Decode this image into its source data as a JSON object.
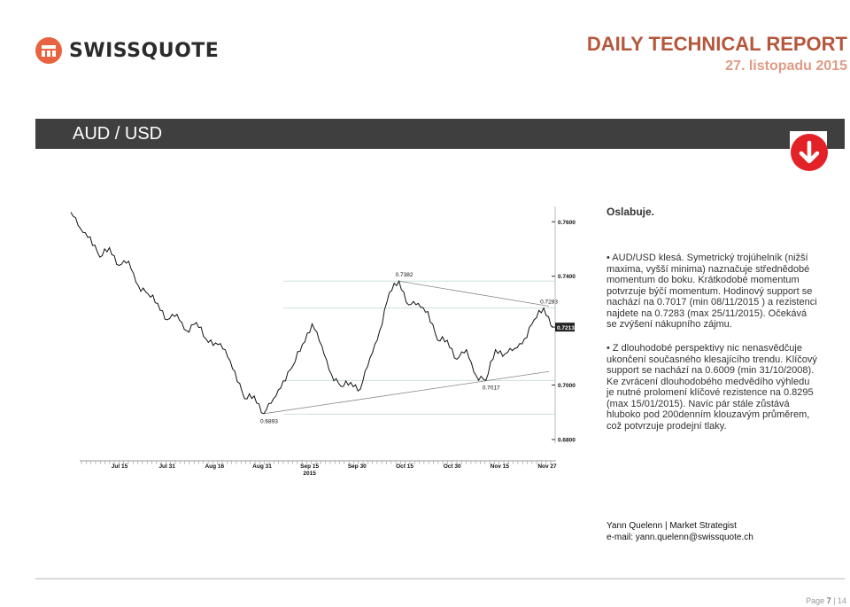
{
  "brand": {
    "name": "SWISSQUOTE",
    "logo_color": "#e8633f"
  },
  "header": {
    "title": "DAILY TECHNICAL REPORT",
    "date": "27. listopadu 2015"
  },
  "banner": {
    "pair": "AUD / USD",
    "signal_icon": "arrow-down-icon",
    "signal_color": "#e32228"
  },
  "analysis": {
    "headline": "Oslabuje.",
    "bullet1": "• AUD/USD klesá. Symetrický trojúhelník (nižší maxima, vyšší minima) naznačuje střednědobé momentum do boku. Krátkodobé momentum potvrzuje býčí momentum. Hodinový support se nachází na 0.7017 (min 08/11/2015 ) a rezistenci najdete na 0.7283 (max 25/11/2015). Očekává se zvýšení nákupního zájmu.",
    "bullet2": "• Z dlouhodobé perspektivy nic nenasvědčuje ukončení současného klesajícího trendu. Klíčový support se nachází na 0.6009 (min 31/10/2008). Ke zvrácení dlouhodobého medvědího výhledu je nutné prolomení klíčové rezistence na 0.8295 (max 15/01/2015). Navíc pár stále zůstává hluboko pod 200denním klouzavým průměrem, což potvrzuje prodejní tlaky."
  },
  "author": {
    "name_line": "Yann Quelenn | Market Strategist",
    "email_line": "e-mail: yann.quelenn@swissquote.ch"
  },
  "footer": {
    "page_label": "Page",
    "page_current": "7",
    "page_total": "14"
  },
  "chart_data": {
    "type": "line",
    "x_tick_labels": [
      "Jul 15",
      "Jul 31",
      "Aug 16",
      "Aug 31",
      "Sep 15\n2015",
      "Sep 30",
      "Oct 15",
      "Oct 30",
      "Nov 15",
      "Nov 27"
    ],
    "y_tick_labels": [
      "0.7600",
      "0.7400",
      "0.7213",
      "0.7000",
      "0.6800"
    ],
    "ylim": [
      0.68,
      0.764
    ],
    "current_price": 0.7213,
    "annotations": [
      {
        "label": "0.7382",
        "x": "Sep 25",
        "y": 0.7382
      },
      {
        "label": "0.7283",
        "x": "Nov 25",
        "y": 0.7283
      },
      {
        "label": "0.7017",
        "x": "Nov 8",
        "y": 0.7017
      },
      {
        "label": "0.6893",
        "x": "Sep 5",
        "y": 0.6893
      }
    ],
    "horizontal_levels": [
      0.7382,
      0.7283,
      0.7017,
      0.6893
    ],
    "series": [
      {
        "x": [
          "Jul 1",
          "Jul 4",
          "Jul 7",
          "Jul 10",
          "Jul 13",
          "Jul 16",
          "Jul 19",
          "Jul 22",
          "Jul 25",
          "Jul 28",
          "Jul 31",
          "Aug 3",
          "Aug 6",
          "Aug 9",
          "Aug 12",
          "Aug 15",
          "Aug 18",
          "Aug 21",
          "Aug 24",
          "Aug 27",
          "Aug 30",
          "Sep 2",
          "Sep 5",
          "Sep 8",
          "Sep 11",
          "Sep 14",
          "Sep 17",
          "Sep 20",
          "Sep 23",
          "Sep 26",
          "Sep 29",
          "Oct 2",
          "Oct 5",
          "Oct 8",
          "Oct 11",
          "Oct 14",
          "Oct 17",
          "Oct 20",
          "Oct 23",
          "Oct 26",
          "Oct 29",
          "Nov 1",
          "Nov 4",
          "Nov 7",
          "Nov 10",
          "Nov 13",
          "Nov 16",
          "Nov 19",
          "Nov 22",
          "Nov 25",
          "Nov 27"
        ],
        "y": [
          0.7635,
          0.7575,
          0.7545,
          0.747,
          0.7505,
          0.744,
          0.7455,
          0.7365,
          0.7335,
          0.73,
          0.724,
          0.726,
          0.72,
          0.723,
          0.717,
          0.7155,
          0.713,
          0.705,
          0.695,
          0.696,
          0.6895,
          0.695,
          0.7015,
          0.707,
          0.715,
          0.7225,
          0.7145,
          0.704,
          0.6995,
          0.701,
          0.6985,
          0.71,
          0.72,
          0.734,
          0.7382,
          0.7295,
          0.73,
          0.727,
          0.7165,
          0.7165,
          0.7095,
          0.713,
          0.7035,
          0.7017,
          0.713,
          0.7115,
          0.7135,
          0.717,
          0.724,
          0.7283,
          0.7213
        ]
      }
    ]
  }
}
